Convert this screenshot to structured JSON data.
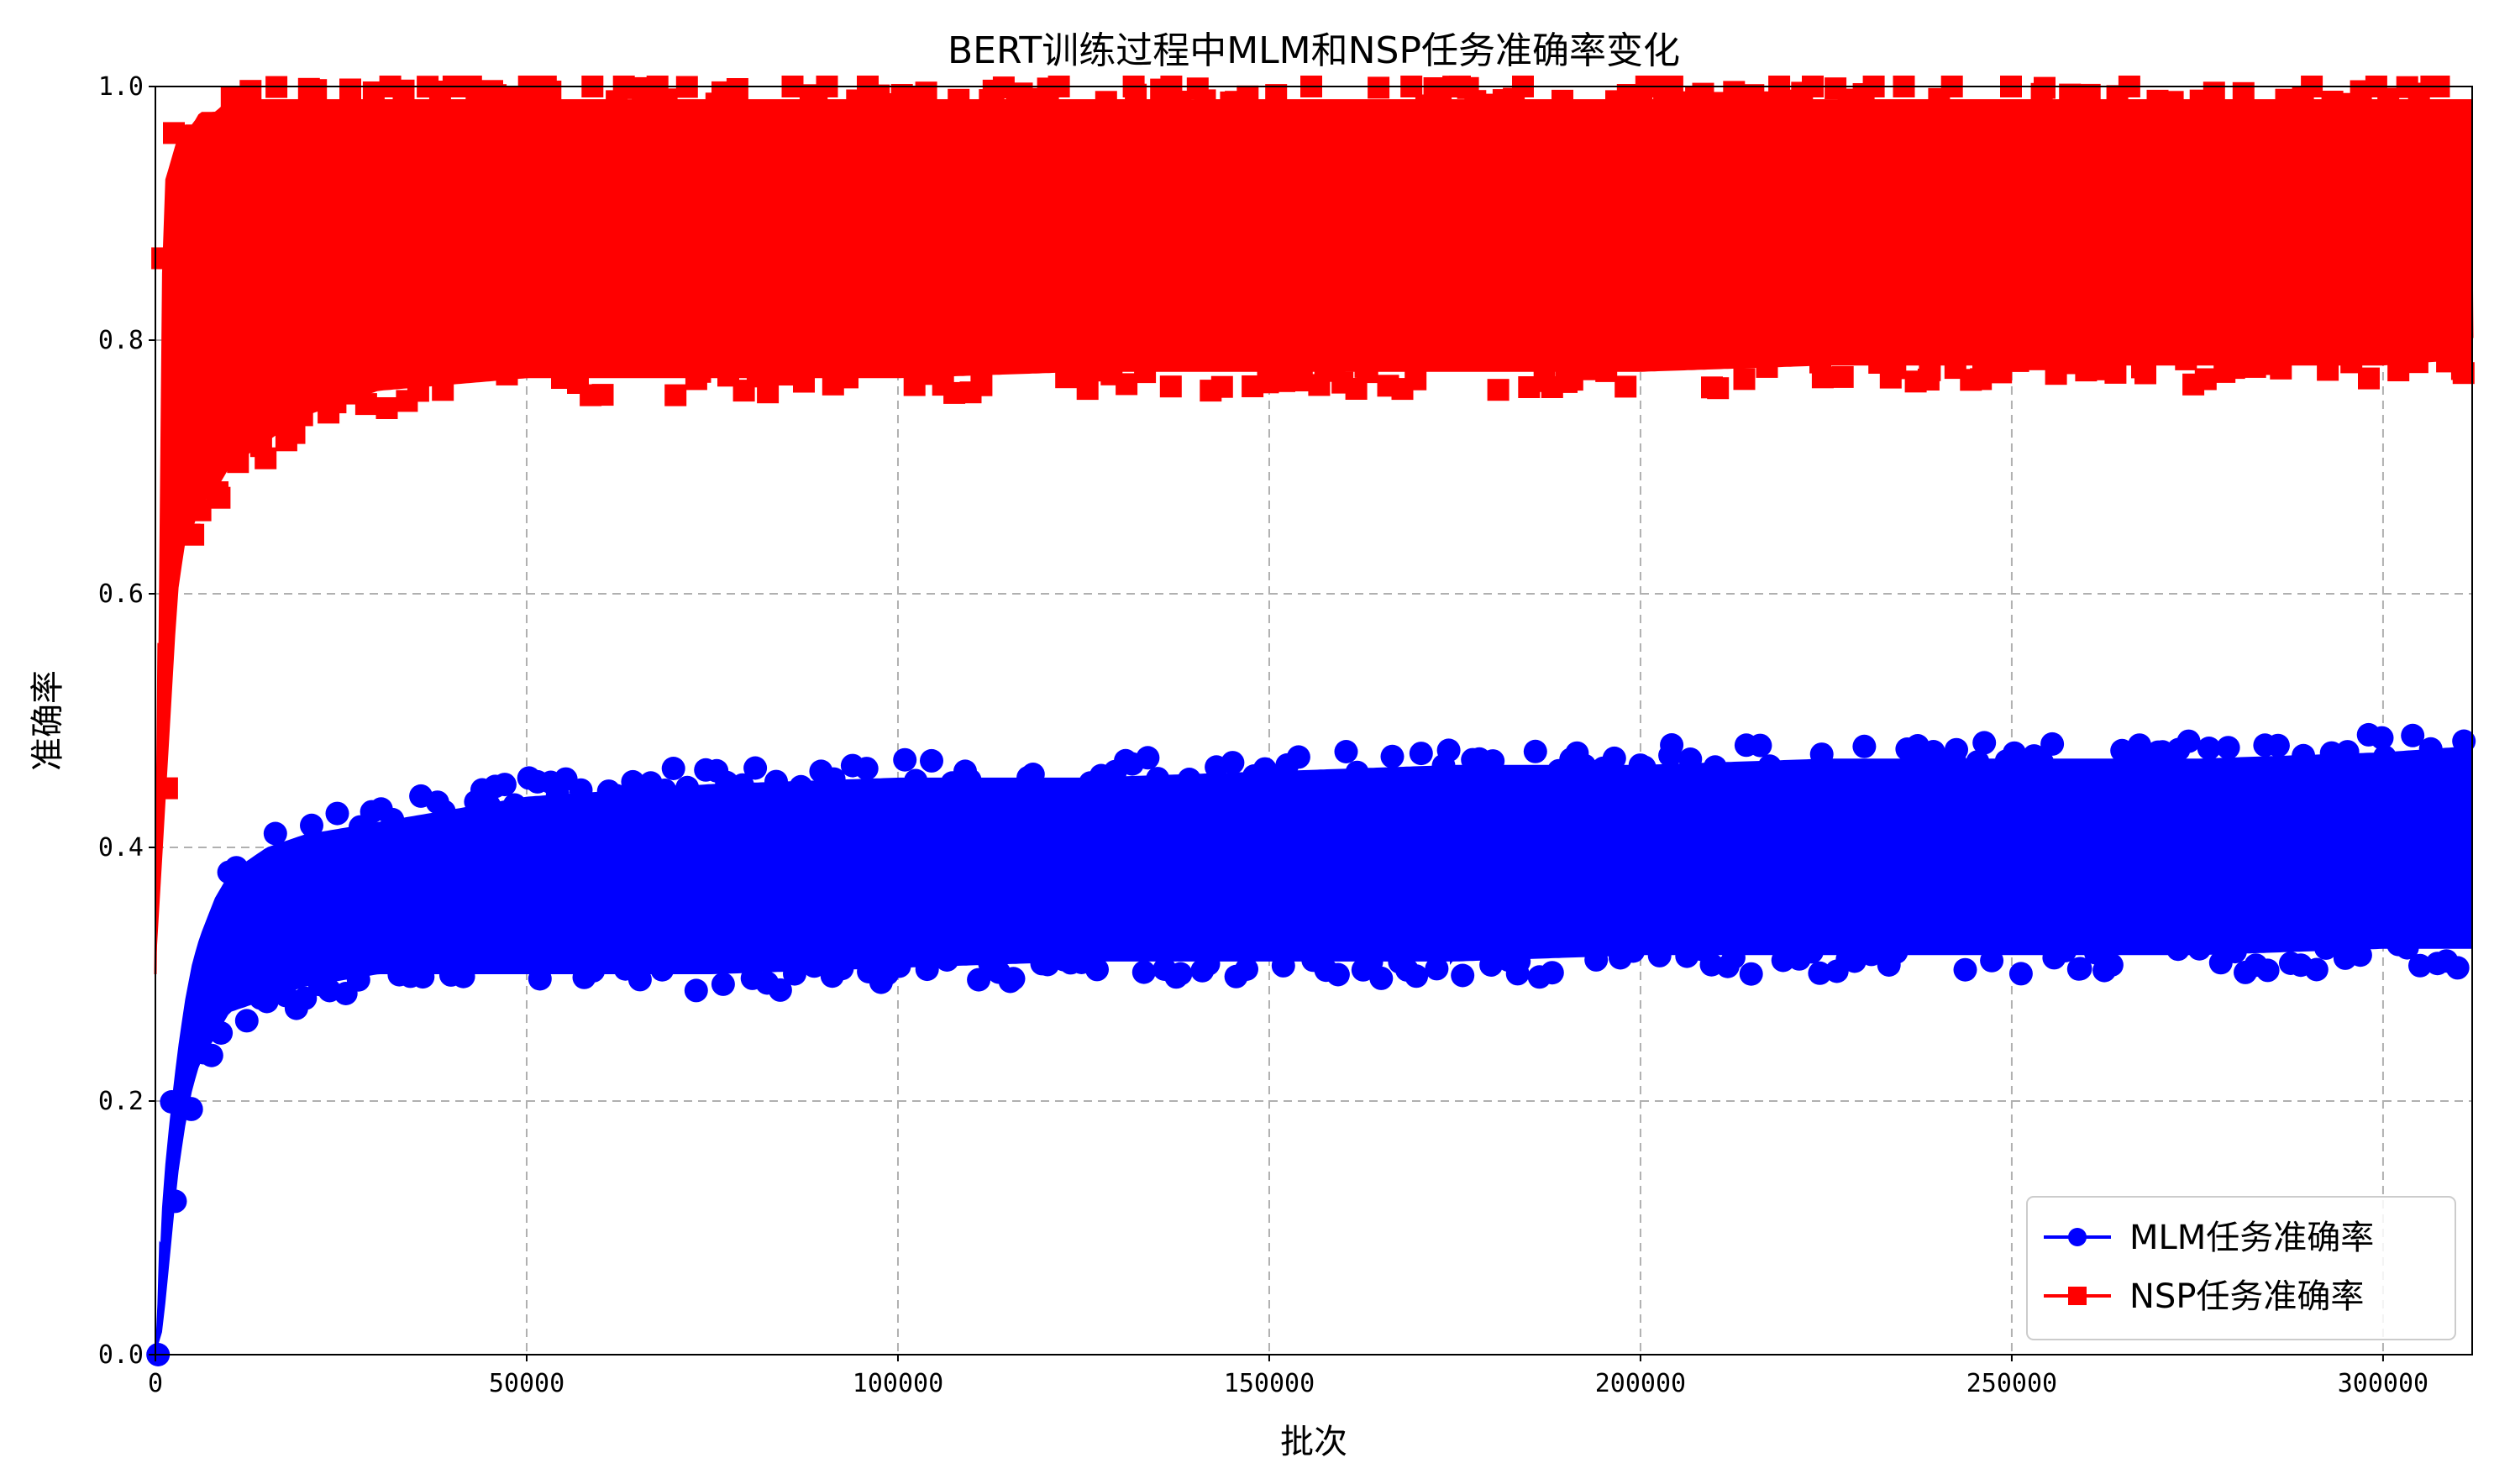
{
  "chart_data": {
    "type": "line",
    "title": "BERT训练过程中MLM和NSP任务准确率变化",
    "xlabel": "批次",
    "ylabel": "准确率",
    "xlim": [
      0,
      312000
    ],
    "ylim": [
      0.0,
      1.0
    ],
    "x_ticks": [
      0,
      50000,
      100000,
      150000,
      200000,
      250000,
      300000
    ],
    "y_ticks": [
      0.0,
      0.2,
      0.4,
      0.6,
      0.8,
      1.0
    ],
    "x_tick_labels": [
      "0",
      "50000",
      "100000",
      "150000",
      "200000",
      "250000",
      "300000"
    ],
    "y_tick_labels": [
      "0.0",
      "0.2",
      "0.4",
      "0.6",
      "0.8",
      "1.0"
    ],
    "grid": true,
    "legend_position": "lower-right",
    "series": [
      {
        "name": "MLM任务准确率",
        "color": "#0000ff",
        "marker": "circle",
        "x": [
          0,
          1000,
          2000,
          3000,
          4000,
          5000,
          6000,
          8000,
          10000,
          15000,
          20000,
          30000,
          40000,
          50000,
          75000,
          100000,
          125000,
          150000,
          175000,
          200000,
          225000,
          250000,
          275000,
          300000,
          312000
        ],
        "mean": [
          0.0,
          0.07,
          0.13,
          0.18,
          0.22,
          0.25,
          0.27,
          0.3,
          0.31,
          0.33,
          0.34,
          0.35,
          0.355,
          0.36,
          0.365,
          0.37,
          0.375,
          0.378,
          0.38,
          0.382,
          0.384,
          0.385,
          0.387,
          0.388,
          0.39
        ],
        "band_low": [
          0.0,
          0.02,
          0.08,
          0.14,
          0.18,
          0.21,
          0.23,
          0.25,
          0.27,
          0.28,
          0.29,
          0.3,
          0.3,
          0.3,
          0.3,
          0.305,
          0.31,
          0.31,
          0.31,
          0.315,
          0.315,
          0.315,
          0.315,
          0.32,
          0.32
        ],
        "band_high": [
          0.0,
          0.13,
          0.19,
          0.24,
          0.28,
          0.31,
          0.33,
          0.36,
          0.38,
          0.4,
          0.41,
          0.42,
          0.43,
          0.44,
          0.45,
          0.455,
          0.455,
          0.46,
          0.465,
          0.465,
          0.47,
          0.47,
          0.47,
          0.475,
          0.48
        ]
      },
      {
        "name": "NSP任务准确率",
        "color": "#ff0000",
        "marker": "square",
        "x": [
          0,
          1000,
          2000,
          3000,
          4000,
          5000,
          6000,
          8000,
          10000,
          15000,
          20000,
          30000,
          40000,
          50000,
          75000,
          100000,
          125000,
          150000,
          175000,
          200000,
          225000,
          250000,
          275000,
          300000,
          312000
        ],
        "mean": [
          0.3,
          0.55,
          0.7,
          0.78,
          0.82,
          0.84,
          0.85,
          0.86,
          0.87,
          0.88,
          0.885,
          0.89,
          0.89,
          0.89,
          0.89,
          0.89,
          0.89,
          0.89,
          0.89,
          0.89,
          0.89,
          0.89,
          0.89,
          0.89,
          0.89
        ],
        "band_low": [
          0.3,
          0.4,
          0.5,
          0.6,
          0.64,
          0.65,
          0.67,
          0.68,
          0.7,
          0.72,
          0.74,
          0.76,
          0.765,
          0.77,
          0.77,
          0.77,
          0.775,
          0.775,
          0.775,
          0.775,
          0.78,
          0.78,
          0.78,
          0.78,
          0.785
        ],
        "band_high": [
          0.3,
          0.92,
          0.94,
          0.96,
          0.97,
          0.97,
          0.98,
          0.98,
          0.99,
          0.99,
          0.99,
          0.99,
          0.99,
          0.99,
          0.99,
          0.99,
          0.99,
          0.99,
          0.99,
          0.99,
          0.99,
          0.99,
          0.99,
          0.99,
          0.99
        ]
      }
    ]
  }
}
